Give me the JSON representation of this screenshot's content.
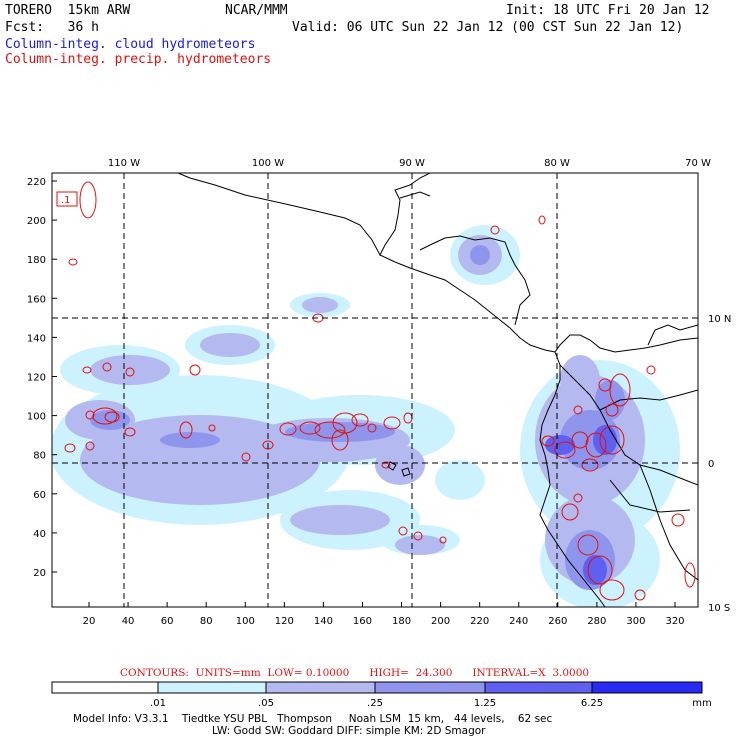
{
  "header": {
    "model": "TORERO  15km ARW",
    "center": "NCAR/MMM",
    "init": "Init: 18 UTC Fri 20 Jan 12",
    "fcst": "Fcst:   36 h",
    "valid": "Valid: 06 UTC Sun 22 Jan 12 (00 CST Sun 22 Jan 12)",
    "field1": "Column-integ. cloud hydrometeors",
    "field2": "Column-integ. precip. hydrometeors"
  },
  "colors": {
    "field1": "#1a1ad6",
    "field2": "#e01010",
    "shade_levels": [
      "#ffffff",
      "#ccf2ff",
      "#b4b9f0",
      "#8f95ec",
      "#5f5ff0",
      "#2a2af5"
    ]
  },
  "map": {
    "top_lon_labels": [
      "110 W",
      "100 W",
      "90 W",
      "80 W",
      "70 W"
    ],
    "right_lat_labels": [
      "10 N",
      "0",
      "10 S"
    ],
    "left_y_ticks": [
      "220",
      "200",
      "180",
      "160",
      "140",
      "120",
      "100",
      "80",
      "60",
      "40",
      "20"
    ],
    "bottom_x_ticks": [
      "20",
      "40",
      "60",
      "80",
      "100",
      "120",
      "140",
      "160",
      "180",
      "200",
      "220",
      "240",
      "260",
      "280",
      "300",
      "320"
    ],
    "box_label": ".1"
  },
  "contours_line": "CONTOURS:  UNITS=mm  LOW= 0.10000      HIGH=  24.300      INTERVAL=X  3.0000",
  "colorbar": {
    "labels": [
      ".01",
      ".05",
      ".25",
      "1.25",
      "6.25"
    ],
    "unit": "mm"
  },
  "footer": {
    "line1": "Model Info: V3.3.1    Tiedtke YSU PBL   Thompson     Noah LSM  15 km,   44 levels,    62 sec",
    "line2": "LW: Godd SW: Goddard DIFF: simple KM: 2D Smagor"
  }
}
